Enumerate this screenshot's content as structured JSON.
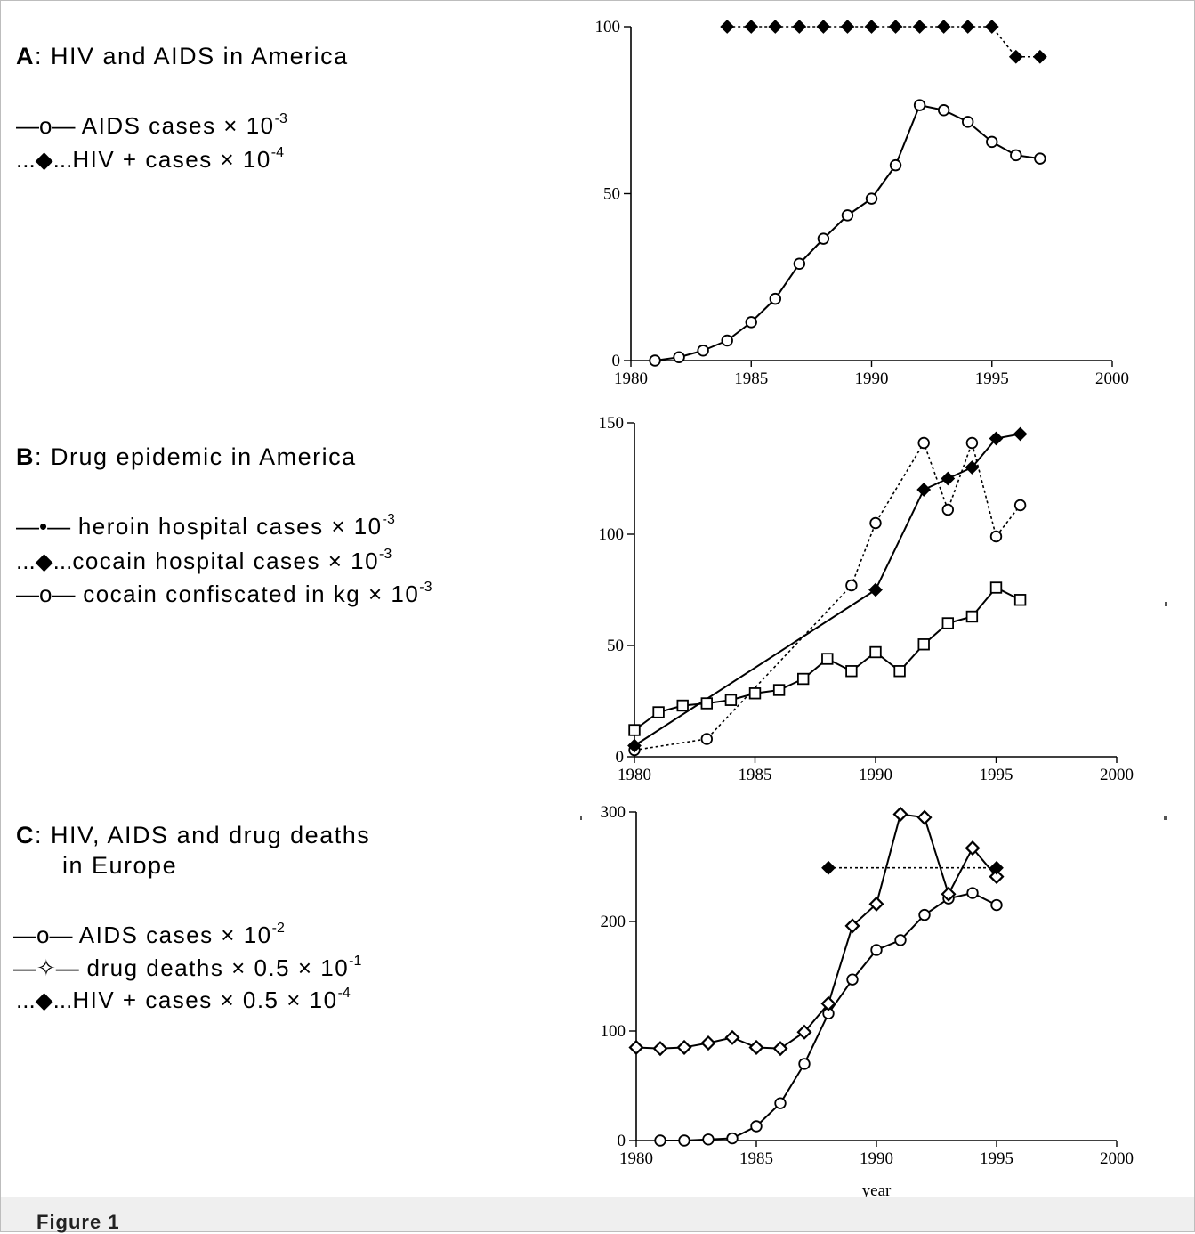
{
  "figure_caption": "Figure 1",
  "panels": [
    {
      "letter": "A",
      "title": ":  HIV and AIDS in America",
      "legend": [
        {
          "symbol": "—o—",
          "label": " AIDS cases  × 10",
          "exponent": "-3"
        },
        {
          "symbol": "...◆...",
          "label": "HIV + cases × 10",
          "exponent": "-4"
        }
      ]
    },
    {
      "letter": "B",
      "title": ":  Drug epidemic in America",
      "legend": [
        {
          "symbol": "—•—",
          "label": " heroin hospital cases × 10",
          "exponent": "-3"
        },
        {
          "symbol": "...◆...",
          "label": "cocain hospital cases × 10",
          "exponent": "-3"
        },
        {
          "symbol": "—o—",
          "label": " cocain confiscated in kg × 10",
          "exponent": "-3"
        }
      ]
    },
    {
      "letter": "C",
      "title": ":  HIV, AIDS and drug deaths",
      "title_line2": "in Europe",
      "legend": [
        {
          "symbol": "—o—",
          "label": " AIDS cases × 10",
          "exponent": "-2"
        },
        {
          "symbol": "—✧—",
          "label": " drug deaths × 0.5 × 10",
          "exponent": "-1"
        },
        {
          "symbol": "...◆...",
          "label": "HIV + cases × 0.5 × 10",
          "exponent": "-4"
        }
      ]
    }
  ],
  "chart_data": [
    {
      "type": "line",
      "panel": "A",
      "xlabel": "",
      "ylabel": "",
      "xlim": [
        1980,
        2000
      ],
      "ylim": [
        0,
        100
      ],
      "xticks": [
        "1980",
        "1985",
        "1990",
        "1995",
        "2000"
      ],
      "yticks": [
        "0",
        "50",
        "100"
      ],
      "series": [
        {
          "marker": "filled-diamond",
          "line": "dotted",
          "x": [
            1984,
            1985,
            1986,
            1987,
            1988,
            1989,
            1990,
            1991,
            1992,
            1993,
            1994,
            1995,
            1996,
            1997
          ],
          "y": [
            100,
            100,
            100,
            100,
            100,
            100,
            100,
            100,
            100,
            100,
            100,
            100,
            91,
            91
          ]
        },
        {
          "marker": "open-circle",
          "line": "solid",
          "x": [
            1981,
            1982,
            1983,
            1984,
            1985,
            1986,
            1987,
            1988,
            1989,
            1990,
            1991,
            1992,
            1993,
            1994,
            1995,
            1996,
            1997
          ],
          "y": [
            0,
            1,
            3,
            6,
            11.5,
            18.5,
            29,
            36.5,
            43.5,
            48.5,
            58.5,
            76.5,
            75,
            71.5,
            65.5,
            61.5,
            60.5
          ]
        }
      ]
    },
    {
      "type": "line",
      "panel": "B",
      "xlabel": "",
      "ylabel": "",
      "xlim": [
        1980,
        2000
      ],
      "ylim": [
        0,
        150
      ],
      "xticks": [
        "1980",
        "1985",
        "1990",
        "1995",
        "2000"
      ],
      "yticks": [
        "0",
        "50",
        "100",
        "150"
      ],
      "series": [
        {
          "marker": "open-circle",
          "line": "dotted",
          "x": [
            1980,
            1983,
            1989,
            1990,
            1992,
            1993,
            1994,
            1995,
            1996
          ],
          "y": [
            3,
            8,
            77,
            105,
            141,
            111,
            141,
            99,
            113
          ]
        },
        {
          "marker": "filled-diamond",
          "line": "solid",
          "x": [
            1980,
            1990,
            1992,
            1993,
            1994,
            1995,
            1996
          ],
          "y": [
            5,
            75,
            120,
            125,
            130,
            143,
            145
          ]
        },
        {
          "marker": "open-square",
          "line": "solid",
          "x": [
            1980,
            1981,
            1982,
            1983,
            1984,
            1985,
            1986,
            1987,
            1988,
            1989,
            1990,
            1991,
            1992,
            1993,
            1994,
            1995,
            1996
          ],
          "y": [
            12,
            20,
            23,
            24,
            25.5,
            28.5,
            30,
            35,
            44,
            38.5,
            47,
            38.5,
            50.5,
            60,
            63,
            76,
            70.5
          ]
        }
      ]
    },
    {
      "type": "line",
      "panel": "C",
      "xlabel": "year",
      "ylabel": "",
      "xlim": [
        1980,
        2000
      ],
      "ylim": [
        0,
        300
      ],
      "xticks": [
        "1980",
        "1985",
        "1990",
        "1995",
        "2000"
      ],
      "yticks": [
        "0",
        "100",
        "200",
        "300"
      ],
      "series": [
        {
          "marker": "open-circle",
          "line": "solid",
          "x": [
            1981,
            1982,
            1983,
            1984,
            1985,
            1986,
            1987,
            1988,
            1989,
            1990,
            1991,
            1992,
            1993,
            1994,
            1995
          ],
          "y": [
            0,
            0,
            1,
            2,
            13,
            34,
            70,
            116,
            147,
            174,
            183,
            206,
            221,
            226,
            215
          ]
        },
        {
          "marker": "open-diamond",
          "line": "solid",
          "x": [
            1980,
            1981,
            1982,
            1983,
            1984,
            1985,
            1986,
            1987,
            1988,
            1989,
            1990,
            1991,
            1992,
            1993,
            1994,
            1995
          ],
          "y": [
            85,
            84,
            85,
            89,
            94,
            85,
            84,
            99,
            125,
            196,
            216,
            298,
            295,
            225,
            267,
            241
          ]
        },
        {
          "marker": "filled-diamond",
          "line": "dotted",
          "x": [
            1988,
            1995
          ],
          "y": [
            249,
            249
          ]
        }
      ]
    }
  ],
  "colors": {
    "ink": "#000000",
    "caption_bar": "#efefef",
    "frame": "#bdbdbd"
  }
}
